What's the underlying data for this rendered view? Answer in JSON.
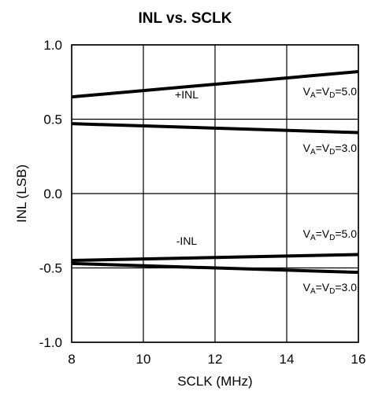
{
  "chart_data": {
    "type": "line",
    "title": "INL vs. SCLK",
    "xlabel": "SCLK (MHz)",
    "ylabel": "INL (LSB)",
    "xlim": [
      8,
      16
    ],
    "ylim": [
      -1.0,
      1.0
    ],
    "x_ticks": [
      "8",
      "10",
      "12",
      "14",
      "16"
    ],
    "y_ticks": [
      "1.0",
      "0.5",
      "0.0",
      "-0.5",
      "-1.0"
    ],
    "grid": true,
    "series": [
      {
        "x": [
          8,
          16
        ],
        "values": [
          0.65,
          0.82
        ]
      },
      {
        "x": [
          8,
          16
        ],
        "values": [
          0.47,
          0.41
        ]
      },
      {
        "x": [
          8,
          16
        ],
        "values": [
          -0.45,
          -0.41
        ]
      },
      {
        "x": [
          8,
          16
        ],
        "values": [
          -0.47,
          -0.53
        ]
      }
    ],
    "annotations": [
      {
        "text": "+INL"
      },
      {
        "text": "-INL"
      },
      {
        "text": "V_A=V_D=5.0",
        "parts": [
          "V",
          "A",
          "=V",
          "D",
          "=5.0"
        ]
      },
      {
        "text": "V_A=V_D=3.0",
        "parts": [
          "V",
          "A",
          "=V",
          "D",
          "=3.0"
        ]
      },
      {
        "text": "V_A=V_D=5.0",
        "parts": [
          "V",
          "A",
          "=V",
          "D",
          "=5.0"
        ]
      },
      {
        "text": "V_A=V_D=3.0",
        "parts": [
          "V",
          "A",
          "=V",
          "D",
          "=3.0"
        ]
      }
    ]
  }
}
